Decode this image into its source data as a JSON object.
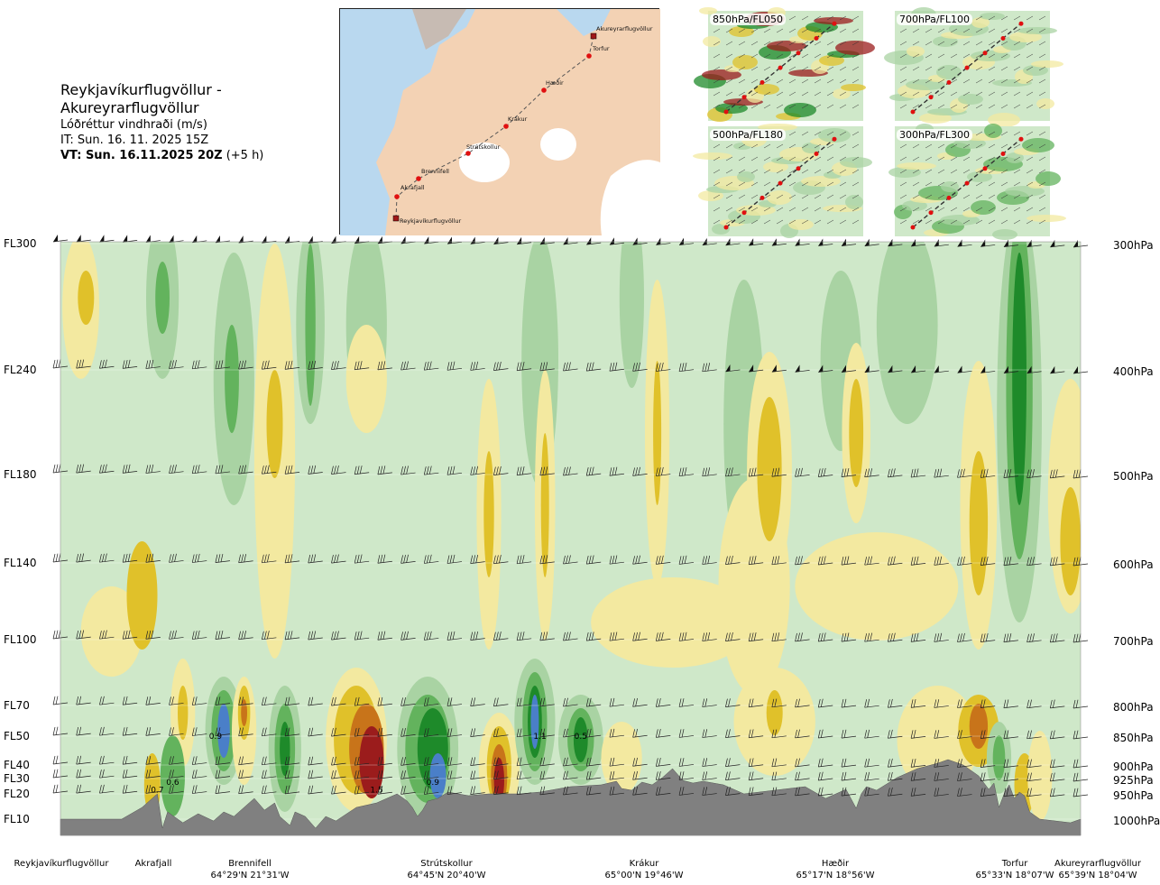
{
  "header": {
    "route": "Reykjavíkurflugvöllur - Akureyrarflugvöllur",
    "variable": "Lóðréttur vindhraði (m/s)",
    "issue_time": "IT: Sun. 16. 11. 2025 15Z",
    "valid_time_bold": "VT: Sun. 16.11.2025 20Z",
    "valid_offset": "(+5 h)"
  },
  "route_map": {
    "waypoints": [
      {
        "name": "Akureyrarflugvöllur",
        "type": "airport"
      },
      {
        "name": "Torfur",
        "type": "fix"
      },
      {
        "name": "Hæðir",
        "type": "fix"
      },
      {
        "name": "Krákur",
        "type": "fix"
      },
      {
        "name": "Strútskollur",
        "type": "fix"
      },
      {
        "name": "Brennifell",
        "type": "fix"
      },
      {
        "name": "Akrafjall",
        "type": "fix"
      },
      {
        "name": "Reykjavíkurflugvöllur",
        "type": "airport"
      }
    ]
  },
  "mini_maps": [
    {
      "label": "850hPa/FL050"
    },
    {
      "label": "700hPa/FL100"
    },
    {
      "label": "500hPa/FL180"
    },
    {
      "label": "300hPa/FL300"
    }
  ],
  "colors": {
    "strong_down": "#9b1c1c",
    "mod_down": "#c8741a",
    "down": "#e0c12a",
    "weak_down": "#f3e9a0",
    "neutral": "#cfe8c9",
    "weak_up": "#a9d3a3",
    "up": "#63b35d",
    "strong_up": "#1e8a2a",
    "very_strong_up": "#4a7fc8",
    "terrain": "#808080"
  },
  "chart_data": {
    "type": "heatmap",
    "title": "Lóðréttur vindhraði (m/s)",
    "y_levels_left": [
      "FL300",
      "FL240",
      "FL180",
      "FL140",
      "FL100",
      "FL70",
      "FL50",
      "FL40",
      "FL30",
      "FL20",
      "FL10"
    ],
    "y_levels_right": [
      "300hPa",
      "400hPa",
      "500hPa",
      "600hPa",
      "700hPa",
      "800hPa",
      "850hPa",
      "900hPa",
      "925hPa",
      "950hPa",
      "1000hPa"
    ],
    "pressure_hpa": [
      300,
      400,
      500,
      600,
      700,
      800,
      850,
      900,
      925,
      950,
      1000
    ],
    "x_waypoints": [
      {
        "name": "Reykjavíkurflugvöllur",
        "coord": ""
      },
      {
        "name": "Akrafjall",
        "coord": ""
      },
      {
        "name": "Brennifell",
        "coord": "64°29'N 21°31'W"
      },
      {
        "name": "Strútskollur",
        "coord": "64°45'N 20°40'W"
      },
      {
        "name": "Krákur",
        "coord": "65°00'N 19°46'W"
      },
      {
        "name": "Hæðir",
        "coord": "65°17'N 18°56'W"
      },
      {
        "name": "Torfur",
        "coord": "65°33'N 18°07'W"
      },
      {
        "name": "Akureyrarflugvöllur",
        "coord": "65°39'N 18°04'W"
      }
    ],
    "route_fraction": [
      0.0,
      0.089,
      0.19,
      0.385,
      0.555,
      0.735,
      0.945,
      1.0
    ],
    "annotations": [
      {
        "text": "0.9",
        "route_fraction": 0.152,
        "pressure_hpa": 855
      },
      {
        "text": "0.7",
        "route_fraction": 0.095,
        "pressure_hpa": 948
      },
      {
        "text": "0.6",
        "route_fraction": 0.11,
        "pressure_hpa": 935
      },
      {
        "text": "1.5",
        "route_fraction": 0.31,
        "pressure_hpa": 948
      },
      {
        "text": "0.9",
        "route_fraction": 0.365,
        "pressure_hpa": 935
      },
      {
        "text": "1.1",
        "route_fraction": 0.47,
        "pressure_hpa": 855
      },
      {
        "text": "0.5",
        "route_fraction": 0.51,
        "pressure_hpa": 855
      }
    ],
    "wind_barb_levels_hpa": [
      300,
      400,
      500,
      600,
      700,
      800,
      850,
      900,
      925,
      950
    ],
    "grid": true,
    "legend": "none"
  }
}
